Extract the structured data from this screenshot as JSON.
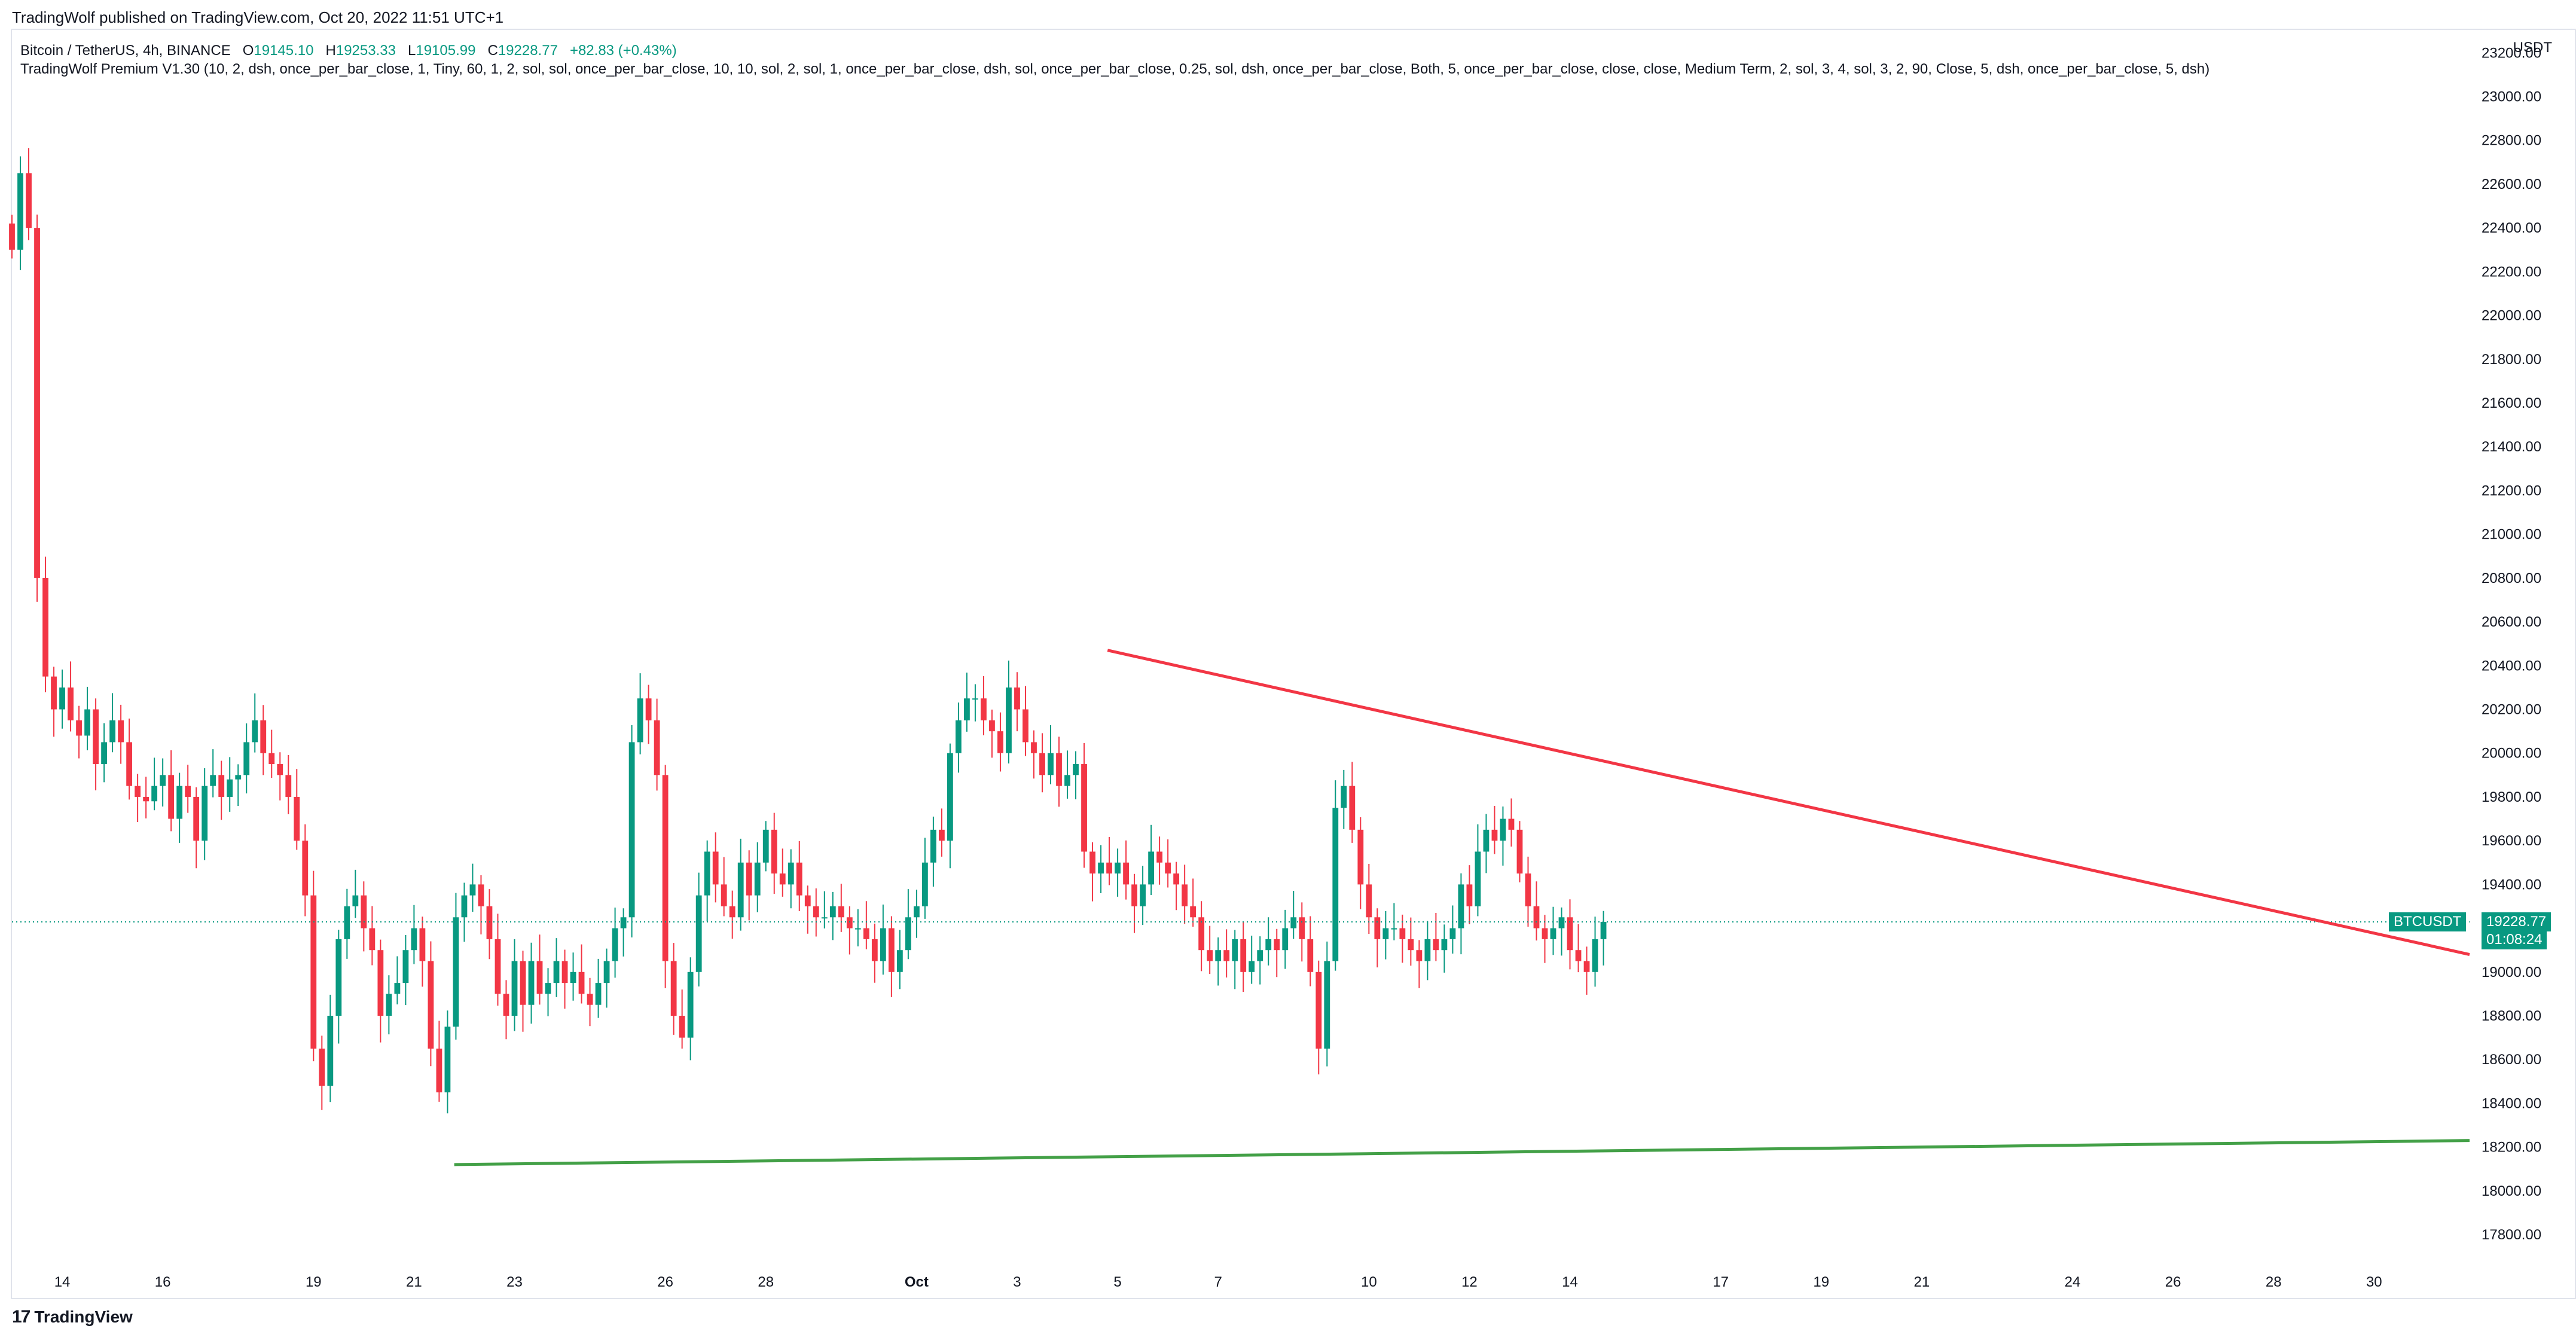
{
  "publisher": "TradingWolf published on TradingView.com, Oct 20, 2022 11:51 UTC+1",
  "legend": {
    "symbol": "Bitcoin / TetherUS, 4h, BINANCE",
    "open_label": "O",
    "open": "19145.10",
    "high_label": "H",
    "high": "19253.33",
    "low_label": "L",
    "low": "19105.99",
    "close_label": "C",
    "close": "19228.77",
    "change": "+82.83 (+0.43%)"
  },
  "indicator": "TradingWolf Premium V1.30 (10, 2, dsh, once_per_bar_close, 1, Tiny, 60, 1, 2, sol, sol, once_per_bar_close, 10, 10, sol, 2, sol, 1, once_per_bar_close, dsh, sol, once_per_bar_close, 0.25, sol, dsh, once_per_bar_close, Both, 5, once_per_bar_close, close, close, Medium Term, 2, sol, 3, 4, sol, 3, 2, 90, Close, 5, dsh, once_per_bar_close, 5, dsh)",
  "logo": "TradingView",
  "logo_mark": "17",
  "unit": "USDT",
  "price_tag": {
    "symbol": "BTCUSDT",
    "price": "19228.77",
    "countdown": "01:08:24"
  },
  "colors": {
    "up": "#089981",
    "down": "#f23645",
    "resistance": "#f23645",
    "support": "#43a047",
    "grid": "#e0e3eb"
  },
  "chart_data": {
    "type": "candlestick",
    "ylim": [
      17650,
      23250
    ],
    "y_ticks": [
      17800,
      18000,
      18200,
      18400,
      18600,
      18800,
      19000,
      19200,
      19400,
      19600,
      19800,
      20000,
      20200,
      20400,
      20600,
      20800,
      21000,
      21200,
      21400,
      21600,
      21800,
      22000,
      22200,
      22400,
      22600,
      22800,
      23000,
      23200
    ],
    "x_ticks": [
      {
        "label": "14",
        "day": 14
      },
      {
        "label": "16",
        "day": 16
      },
      {
        "label": "19",
        "day": 19
      },
      {
        "label": "21",
        "day": 21
      },
      {
        "label": "23",
        "day": 23
      },
      {
        "label": "26",
        "day": 26
      },
      {
        "label": "28",
        "day": 28
      },
      {
        "label": "Oct",
        "day": 31
      },
      {
        "label": "3",
        "day": 33
      },
      {
        "label": "5",
        "day": 35
      },
      {
        "label": "7",
        "day": 37
      },
      {
        "label": "10",
        "day": 40
      },
      {
        "label": "12",
        "day": 42
      },
      {
        "label": "14",
        "day": 44
      },
      {
        "label": "17",
        "day": 47
      },
      {
        "label": "19",
        "day": 49
      },
      {
        "label": "21",
        "day": 51
      },
      {
        "label": "24",
        "day": 54
      },
      {
        "label": "26",
        "day": 56
      },
      {
        "label": "28",
        "day": 58
      },
      {
        "label": "30",
        "day": 60
      }
    ],
    "x_range_days": [
      13.0,
      61.9
    ],
    "bar_hours": 4,
    "start_day": 13.0,
    "candles_close": [
      22300,
      22650,
      22400,
      20800,
      20350,
      20200,
      20300,
      20150,
      20080,
      20200,
      19950,
      20050,
      20150,
      20050,
      19850,
      19800,
      19780,
      19850,
      19900,
      19700,
      19850,
      19800,
      19600,
      19850,
      19900,
      19800,
      19880,
      19900,
      20050,
      20150,
      20000,
      19950,
      19900,
      19800,
      19600,
      19350,
      18650,
      18480,
      18800,
      19150,
      19300,
      19350,
      19200,
      19100,
      18800,
      18900,
      18950,
      19100,
      19200,
      19050,
      18650,
      18450,
      18750,
      19250,
      19350,
      19400,
      19300,
      19150,
      18900,
      18800,
      19050,
      18850,
      19050,
      18900,
      18950,
      19050,
      18950,
      19000,
      18900,
      18850,
      18950,
      19050,
      19200,
      19250,
      20050,
      20250,
      20150,
      19900,
      19050,
      18800,
      18700,
      19000,
      19350,
      19550,
      19400,
      19300,
      19250,
      19500,
      19350,
      19500,
      19650,
      19450,
      19400,
      19500,
      19350,
      19300,
      19250,
      19250,
      19300,
      19250,
      19200,
      19200,
      19150,
      19050,
      19200,
      19000,
      19100,
      19250,
      19300,
      19500,
      19650,
      19600,
      20000,
      20150,
      20250,
      20250,
      20150,
      20100,
      20000,
      20300,
      20200,
      20050,
      20000,
      19900,
      20000,
      19850,
      19900,
      19950,
      19550,
      19450,
      19500,
      19450,
      19500,
      19400,
      19300,
      19400,
      19550,
      19500,
      19450,
      19400,
      19300,
      19250,
      19100,
      19050,
      19100,
      19050,
      19150,
      19000,
      19050,
      19100,
      19150,
      19100,
      19200,
      19250,
      19150,
      19000,
      18650,
      19050,
      19750,
      19850,
      19650,
      19400,
      19250,
      19150,
      19200,
      19200,
      19150,
      19100,
      19050,
      19150,
      19100,
      19150,
      19200,
      19400,
      19300,
      19550,
      19650,
      19600,
      19700,
      19650,
      19450,
      19300,
      19200,
      19150,
      19200,
      19250,
      19100,
      19050,
      19000,
      19150,
      19228.77
    ]
  }
}
